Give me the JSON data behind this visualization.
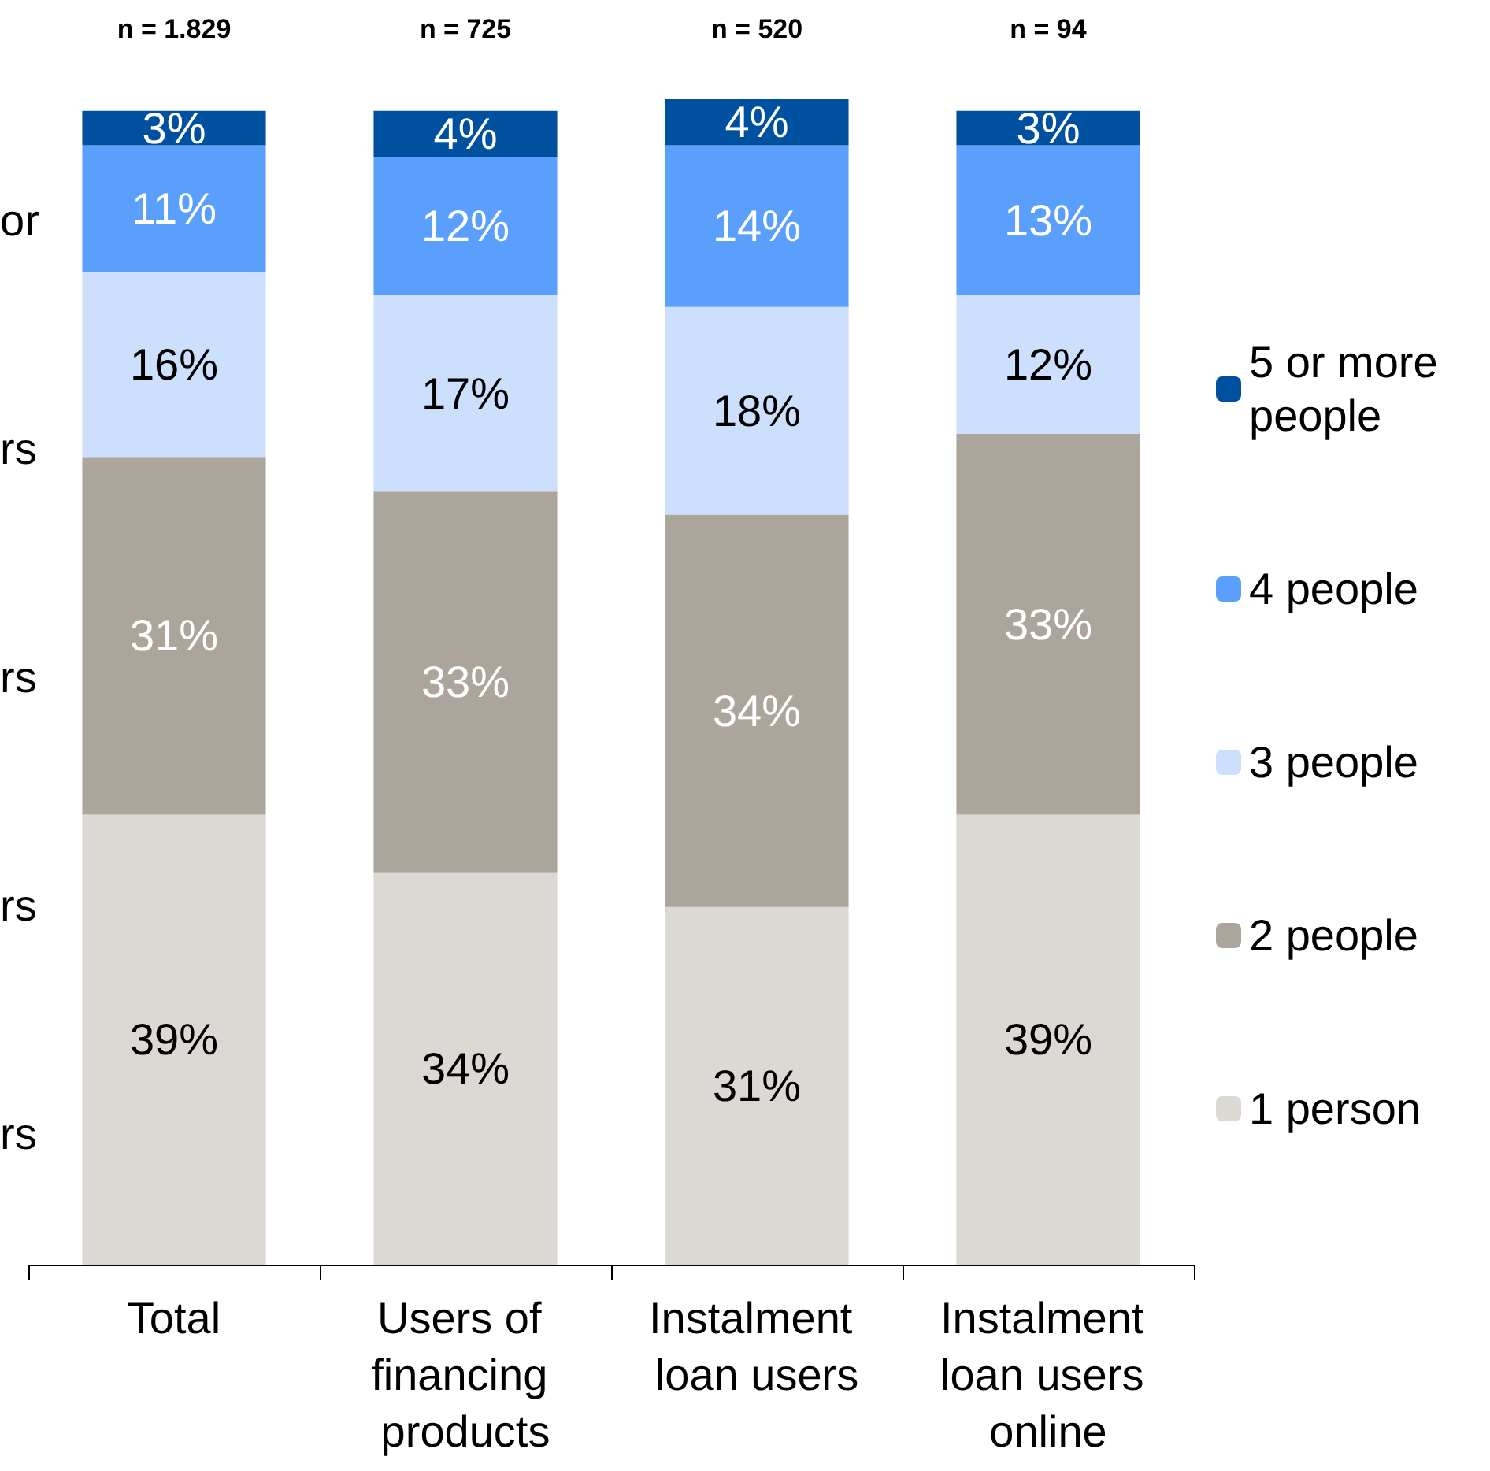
{
  "chart_data": {
    "type": "bar",
    "stacked": true,
    "legend": "right",
    "categories": [
      "Total",
      "Users of financing products",
      "Instalment loan users",
      "Instalment loan users online"
    ],
    "series": [
      {
        "name": "1 person",
        "color": "#dcd9d4",
        "values": [
          39,
          34,
          31,
          39
        ],
        "value_labels": [
          "39%",
          "34%",
          "31%",
          "39%"
        ]
      },
      {
        "name": "2 people",
        "color": "#aba59c",
        "values": [
          31,
          33,
          34,
          33
        ],
        "value_labels": [
          "31%",
          "33%",
          "34%",
          "33%"
        ]
      },
      {
        "name": "3 people",
        "color": "#cce0fe",
        "values": [
          16,
          17,
          18,
          12
        ],
        "value_labels": [
          "16%",
          "17%",
          "18%",
          "12%"
        ]
      },
      {
        "name": "4 people",
        "color": "#5b9ffc",
        "values": [
          11,
          12,
          14,
          13
        ],
        "value_labels": [
          "11%",
          "12%",
          "14%",
          "13%"
        ]
      },
      {
        "name": "5 or more people",
        "color": "#0050a0",
        "values": [
          3,
          4,
          4,
          3
        ],
        "value_labels": [
          "3%",
          "4%",
          "4%",
          "3%"
        ]
      }
    ],
    "annotations": [
      "n = 1.829",
      "n = 725",
      "n = 520",
      "n = 94",
      "or",
      "rs",
      "rs",
      "rs",
      "rs"
    ]
  }
}
